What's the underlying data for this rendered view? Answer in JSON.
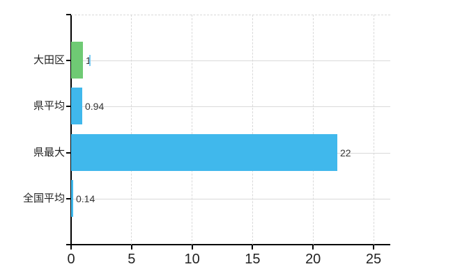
{
  "chart_data": {
    "type": "bar",
    "orientation": "horizontal",
    "title": "",
    "xlabel": "",
    "ylabel": "",
    "categories": [
      "大田区",
      "県平均",
      "県最大",
      "全国平均"
    ],
    "values": [
      1,
      0.94,
      22,
      0.14
    ],
    "value_labels": [
      "1",
      "0.94",
      "22",
      "0.14"
    ],
    "bar_colors": [
      "#6fca74",
      "#40b8ec",
      "#40b8ec",
      "#40b8ec"
    ],
    "xlim": [
      0,
      25
    ],
    "x_ticks": [
      "0",
      "5",
      "10",
      "15",
      "20",
      "25"
    ],
    "grid": true,
    "legend_position": "none",
    "background": "#ffffff",
    "colors": {
      "blue_bar": "#40b8ec",
      "green_bar": "#6fca74",
      "gridline": "#d9d9d9",
      "axis": "#000000",
      "category_text": "#222222",
      "value_text": "#333333",
      "caret_artifact": "#7fcdf3"
    },
    "artifact": {
      "caret_after_index": 0
    }
  }
}
